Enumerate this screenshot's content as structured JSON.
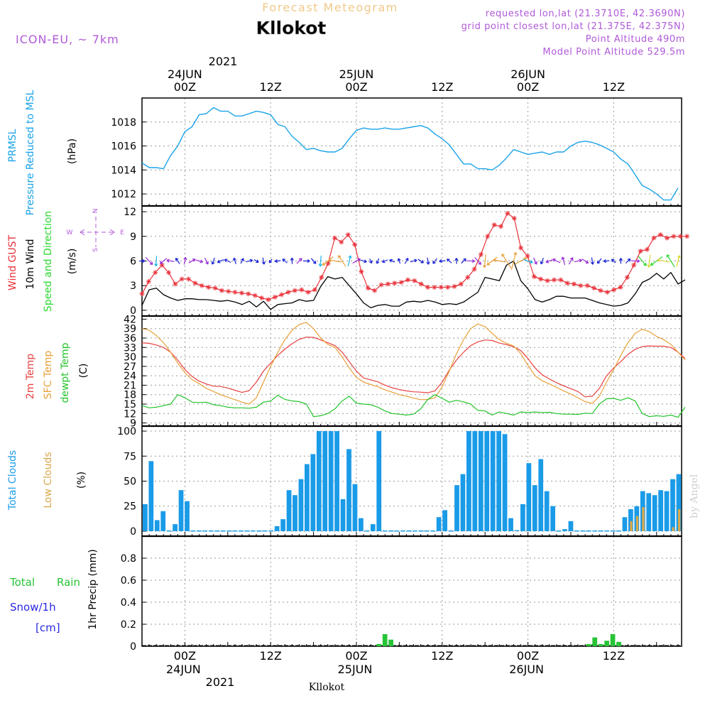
{
  "colors": {
    "pressure": "#1aa3e8",
    "wind_gust": "#e8323a",
    "wind10": "#000000",
    "arrows_slow": "#1a22d8",
    "arrows_mid": "#9a2ad8",
    "arrows_cyan": "#19b5e8",
    "arrows_orange": "#e8a13a",
    "arrows_yellow": "#d8d832",
    "arrows_green": "#2ad830",
    "temp2m": "#e84040",
    "sfc_temp": "#e8a13a",
    "dewpt": "#22c42a",
    "total_clouds": "#1a9be8",
    "low_clouds": "#d9a84a",
    "rain": "#27c436",
    "snow": "#2828e0",
    "meta": "#b05ad8",
    "title_faint": "#f0c98a"
  },
  "header": {
    "faint_title": "Forecast Meteogram",
    "location": "Kllokot",
    "model": "ICON-EU, ~ 7km",
    "requested": "requested lon,lat (21.3710E, 42.3690N)",
    "grid_point": "grid point closest lon,lat (21.375E, 42.375N)",
    "point_alt": "Point Altitude 490m",
    "model_alt": "Model Point Altitude 529.5m",
    "footer_location": "Kllokot",
    "credit": "by Angel"
  },
  "time_axis": {
    "top_year": "2021",
    "bottom_year": "2021",
    "days": [
      {
        "x": 6,
        "label": "24JUN"
      },
      {
        "x": 30,
        "label": "25JUN"
      },
      {
        "x": 54,
        "label": "26JUN"
      }
    ],
    "ticks": [
      {
        "x": 6,
        "label": "00Z"
      },
      {
        "x": 18,
        "label": "12Z"
      },
      {
        "x": 30,
        "label": "00Z"
      },
      {
        "x": 42,
        "label": "12Z"
      },
      {
        "x": 54,
        "label": "00Z"
      },
      {
        "x": 66,
        "label": "12Z"
      }
    ]
  },
  "panels": {
    "pressure": {
      "title_line1": "PRMSL",
      "title_line2": "Pressure Reduced to MSL",
      "unit": "(hPa)",
      "ylim": [
        1011,
        1020
      ],
      "ticks": [
        "1012",
        "1014",
        "1016",
        "1018"
      ]
    },
    "wind": {
      "title_gust": "Wind GUST",
      "title_10m": "10m Wind",
      "title_speed": "Speed and Direction",
      "unit": "(m/s)",
      "ylim": [
        -0.7,
        12.7
      ],
      "ticks": [
        "0",
        "3",
        "6",
        "9",
        "12"
      ],
      "compass_n": "N",
      "compass_w": "W",
      "compass_e": "E",
      "compass_s": "S"
    },
    "temp": {
      "title_2m": "2m Temp",
      "title_sfc": "SFC Temp",
      "title_dew": "dewpt Temp",
      "unit": "(C)",
      "ylim": [
        8,
        43
      ],
      "ticks": [
        "9",
        "12",
        "15",
        "18",
        "21",
        "24",
        "27",
        "30",
        "33",
        "36",
        "39",
        "42"
      ]
    },
    "clouds": {
      "title_total": "Total Clouds",
      "title_low": "Low Clouds",
      "unit": "(%)",
      "ylim": [
        -5,
        105
      ],
      "ticks": [
        "0",
        "25",
        "50",
        "75",
        "100"
      ]
    },
    "precip": {
      "title_rain_a": "Total",
      "title_rain_b": "Rain",
      "title_snow": "Snow/1h",
      "title_cm": "[cm]",
      "unit": "1hr Precip (mm)",
      "ylim": [
        0,
        1.0
      ],
      "ticks": [
        "0",
        "0.2",
        "0.4",
        "0.6",
        "0.8"
      ]
    }
  },
  "chart_data": [
    {
      "type": "line",
      "title": "PRMSL Pressure Reduced to MSL",
      "ylabel": "hPa",
      "x_hours_since_23JUN18Z": [
        0,
        1,
        2,
        3,
        4,
        5,
        6,
        7,
        8,
        9,
        10,
        11,
        12,
        13,
        14,
        15,
        16,
        17,
        18,
        19,
        20,
        21,
        22,
        23,
        24,
        25,
        26,
        27,
        28,
        29,
        30,
        31,
        32,
        33,
        34,
        35,
        36,
        37,
        38,
        39,
        40,
        41,
        42,
        43,
        44,
        45,
        46,
        47,
        48,
        49,
        50,
        51,
        52,
        53,
        54,
        55,
        56,
        57,
        58,
        59,
        60,
        61,
        62,
        63,
        64,
        65,
        66,
        67,
        68,
        69,
        70,
        71,
        72,
        73,
        74,
        75
      ],
      "values": [
        1014.6,
        1014.2,
        1014.2,
        1014.1,
        1015.2,
        1016.0,
        1017.2,
        1017.6,
        1018.6,
        1018.7,
        1019.2,
        1018.9,
        1018.9,
        1018.5,
        1018.5,
        1018.7,
        1018.9,
        1018.8,
        1018.6,
        1017.8,
        1017.6,
        1016.8,
        1016.3,
        1015.7,
        1015.8,
        1015.6,
        1015.5,
        1015.5,
        1015.8,
        1016.6,
        1017.3,
        1017.5,
        1017.4,
        1017.4,
        1017.5,
        1017.4,
        1017.4,
        1017.5,
        1017.6,
        1017.7,
        1017.5,
        1017.0,
        1016.6,
        1016.1,
        1015.3,
        1014.5,
        1014.5,
        1014.1,
        1014.1,
        1014.0,
        1014.4,
        1015.0,
        1015.7,
        1015.5,
        1015.3,
        1015.4,
        1015.5,
        1015.3,
        1015.5,
        1015.5,
        1016.0,
        1016.3,
        1016.4,
        1016.3,
        1016.1,
        1015.8,
        1015.5,
        1014.9,
        1014.5,
        1013.6,
        1012.7,
        1012.4,
        1012.0,
        1011.5,
        1011.5,
        1012.5
      ]
    },
    {
      "type": "line",
      "title": "Wind GUST / 10m Wind Speed and Direction",
      "ylabel": "m/s",
      "series": [
        {
          "name": "Wind GUST",
          "x_start": 0,
          "values": [
            2.0,
            3.5,
            4.6,
            5.5,
            4.6,
            3.2,
            3.8,
            3.8,
            3.3,
            3.0,
            2.8,
            2.7,
            2.4,
            2.3,
            2.2,
            2.1,
            2.0,
            1.8,
            1.5,
            1.3,
            1.6,
            1.9,
            2.2,
            2.4,
            2.5,
            2.2,
            2.5,
            4.0,
            5.7,
            8.8,
            8.3,
            9.2,
            8.0,
            4.7,
            2.7,
            2.4,
            3.1,
            3.2,
            3.3,
            3.4,
            3.7,
            3.6,
            3.2,
            2.8,
            2.8,
            2.8,
            2.8,
            2.9,
            3.2,
            4.0,
            5.0,
            6.8,
            9.0,
            10.4,
            10.2,
            11.8,
            11.2,
            7.6,
            6.6,
            4.1,
            3.8,
            3.6,
            3.7,
            3.7,
            3.3,
            3.2,
            3.0,
            3.0,
            2.7,
            2.4,
            2.2,
            2.5,
            2.8,
            4.0,
            5.5,
            7.2,
            7.4,
            8.8,
            9.2,
            8.8,
            9.0,
            9.0,
            9.0
          ]
        },
        {
          "name": "10m Wind",
          "x_start": 0,
          "values": [
            0.6,
            2.5,
            2.7,
            1.9,
            1.5,
            1.2,
            1.4,
            1.4,
            1.3,
            1.3,
            1.2,
            1.1,
            1.2,
            1.0,
            0.7,
            1.1,
            0.4,
            1.1,
            0.1,
            0.7,
            0.8,
            0.9,
            1.3,
            1.1,
            1.2,
            2.9,
            4.1,
            3.8,
            4.0,
            3.0,
            2.0,
            0.9,
            0.3,
            0.6,
            0.7,
            0.5,
            0.5,
            1.0,
            1.1,
            1.0,
            1.2,
            1.0,
            0.7,
            0.8,
            0.7,
            1.0,
            1.6,
            2.2,
            4.0,
            3.8,
            3.6,
            5.5,
            6.0,
            3.6,
            2.6,
            1.3,
            1.0,
            1.3,
            1.7,
            1.7,
            1.5,
            1.5,
            1.5,
            1.2,
            0.9,
            0.7,
            0.5,
            0.6,
            0.9,
            2.0,
            3.4,
            3.8,
            4.5,
            3.8,
            4.6,
            3.2,
            3.7
          ]
        }
      ]
    },
    {
      "type": "line",
      "title": "2m Temp / SFC Temp / dewpt Temp",
      "ylabel": "C",
      "series": [
        {
          "name": "2m Temp",
          "values": [
            34.5,
            34.3,
            33.8,
            33.0,
            31.5,
            29.0,
            26.0,
            23.8,
            22.3,
            21.4,
            20.7,
            20.6,
            20.1,
            19.4,
            18.7,
            19.3,
            22.0,
            25.5,
            28.0,
            30.5,
            32.5,
            34.2,
            35.6,
            36.3,
            36.2,
            35.4,
            34.5,
            33.6,
            31.5,
            28.5,
            25.5,
            23.3,
            22.7,
            22.1,
            21.0,
            20.2,
            19.6,
            19.2,
            18.9,
            18.8,
            18.6,
            19.2,
            22.0,
            25.8,
            29.0,
            31.5,
            33.6,
            34.8,
            35.4,
            35.2,
            34.4,
            33.9,
            33.2,
            32.0,
            29.5,
            26.5,
            24.3,
            23.0,
            21.8,
            20.8,
            19.9,
            19.0,
            17.3,
            17.5,
            20.0,
            24.0,
            26.5,
            28.5,
            30.8,
            32.4,
            33.3,
            33.5,
            33.4,
            33.4,
            33.0,
            31.5,
            29.5
          ]
        },
        {
          "name": "SFC Temp",
          "values": [
            39.0,
            38.5,
            36.8,
            34.5,
            31.5,
            28.0,
            25.0,
            22.8,
            21.5,
            20.0,
            19.0,
            18.0,
            17.2,
            16.4,
            15.6,
            15.0,
            17.0,
            22.0,
            27.0,
            31.5,
            35.5,
            38.5,
            40.3,
            41.0,
            39.0,
            36.0,
            34.0,
            33.0,
            30.0,
            26.5,
            23.5,
            22.0,
            21.2,
            20.5,
            19.5,
            18.8,
            18.0,
            17.5,
            16.9,
            16.4,
            16.5,
            17.0,
            20.5,
            25.5,
            31.0,
            35.5,
            39.0,
            40.5,
            39.6,
            37.5,
            35.5,
            34.3,
            33.5,
            31.0,
            27.3,
            24.0,
            22.4,
            21.4,
            20.3,
            19.2,
            18.2,
            17.0,
            15.8,
            15.2,
            17.5,
            22.0,
            26.0,
            30.5,
            34.5,
            37.5,
            38.8,
            38.0,
            36.5,
            35.5,
            34.0,
            31.5,
            29.0
          ]
        },
        {
          "name": "dewpt Temp",
          "values": [
            14.5,
            13.8,
            14.0,
            14.5,
            15.0,
            18.0,
            17.0,
            15.6,
            15.5,
            15.6,
            14.8,
            14.5,
            14.0,
            13.8,
            13.8,
            13.7,
            14.0,
            15.6,
            16.0,
            17.8,
            16.5,
            16.0,
            15.8,
            15.0,
            11.0,
            11.3,
            12.0,
            13.5,
            16.0,
            17.5,
            15.3,
            15.0,
            14.8,
            14.0,
            12.8,
            12.0,
            11.8,
            11.5,
            11.8,
            13.5,
            16.5,
            18.0,
            16.8,
            15.6,
            16.2,
            15.7,
            15.0,
            13.0,
            12.8,
            11.5,
            12.5,
            12.0,
            11.5,
            12.5,
            12.3,
            12.5,
            12.3,
            12.4,
            12.0,
            11.8,
            11.8,
            11.7,
            12.1,
            12.0,
            15.0,
            16.7,
            16.8,
            16.2,
            17.0,
            16.0,
            12.0,
            11.0,
            11.3,
            11.1,
            11.5,
            10.8,
            14.0
          ]
        }
      ]
    },
    {
      "type": "bar",
      "title": "Total Clouds / Low Clouds",
      "ylabel": "%",
      "series": [
        {
          "name": "Total Clouds",
          "x_start": 0,
          "values": [
            27,
            70,
            11,
            20,
            0,
            7,
            41,
            30,
            0,
            0,
            0,
            0,
            0,
            0,
            0,
            0,
            0,
            0,
            0,
            0,
            0,
            0,
            5,
            12,
            41,
            36,
            52,
            67,
            77,
            100,
            100,
            100,
            100,
            32,
            82,
            47,
            13,
            0,
            7,
            100,
            0,
            0,
            0,
            0,
            0,
            0,
            0,
            0,
            0,
            14,
            21,
            0,
            46,
            57,
            100,
            100,
            100,
            100,
            100,
            100,
            97,
            13,
            1,
            27,
            68,
            46,
            72,
            40,
            25,
            0,
            2,
            10,
            0,
            0,
            0,
            0,
            0,
            0,
            0,
            0,
            14,
            22,
            25,
            40,
            38,
            36,
            41,
            40,
            52,
            57
          ]
        },
        {
          "name": "Low Clouds",
          "x_start": 0,
          "values": [
            0,
            0,
            0,
            0,
            0,
            0,
            0,
            0,
            0,
            0,
            0,
            0,
            0,
            0,
            0,
            0,
            0,
            0,
            0,
            0,
            0,
            0,
            0,
            0,
            0,
            0,
            0,
            0,
            0,
            0,
            0,
            0,
            0,
            0,
            0,
            0,
            0,
            0,
            0,
            0,
            0,
            0,
            0,
            0,
            0,
            0,
            0,
            0,
            0,
            0,
            0,
            0,
            0,
            0,
            0,
            0,
            0,
            0,
            0,
            0,
            0,
            0,
            0,
            0,
            0,
            0,
            0,
            0,
            0,
            0,
            0,
            0,
            0,
            0,
            0,
            0,
            0,
            0,
            0,
            0,
            0,
            10,
            15,
            24,
            0,
            0,
            0,
            0,
            4,
            22
          ]
        }
      ]
    },
    {
      "type": "bar",
      "title": "1hr Precip",
      "ylabel": "mm",
      "series": [
        {
          "name": "Total Rain",
          "x": [
            39,
            40,
            41,
            74,
            75,
            76,
            77,
            78,
            79
          ],
          "values": [
            0.02,
            0.11,
            0.06,
            0.02,
            0.08,
            0.02,
            0.05,
            0.11,
            0.04
          ]
        },
        {
          "name": "Snow/1h",
          "x": [],
          "values": []
        }
      ]
    }
  ]
}
